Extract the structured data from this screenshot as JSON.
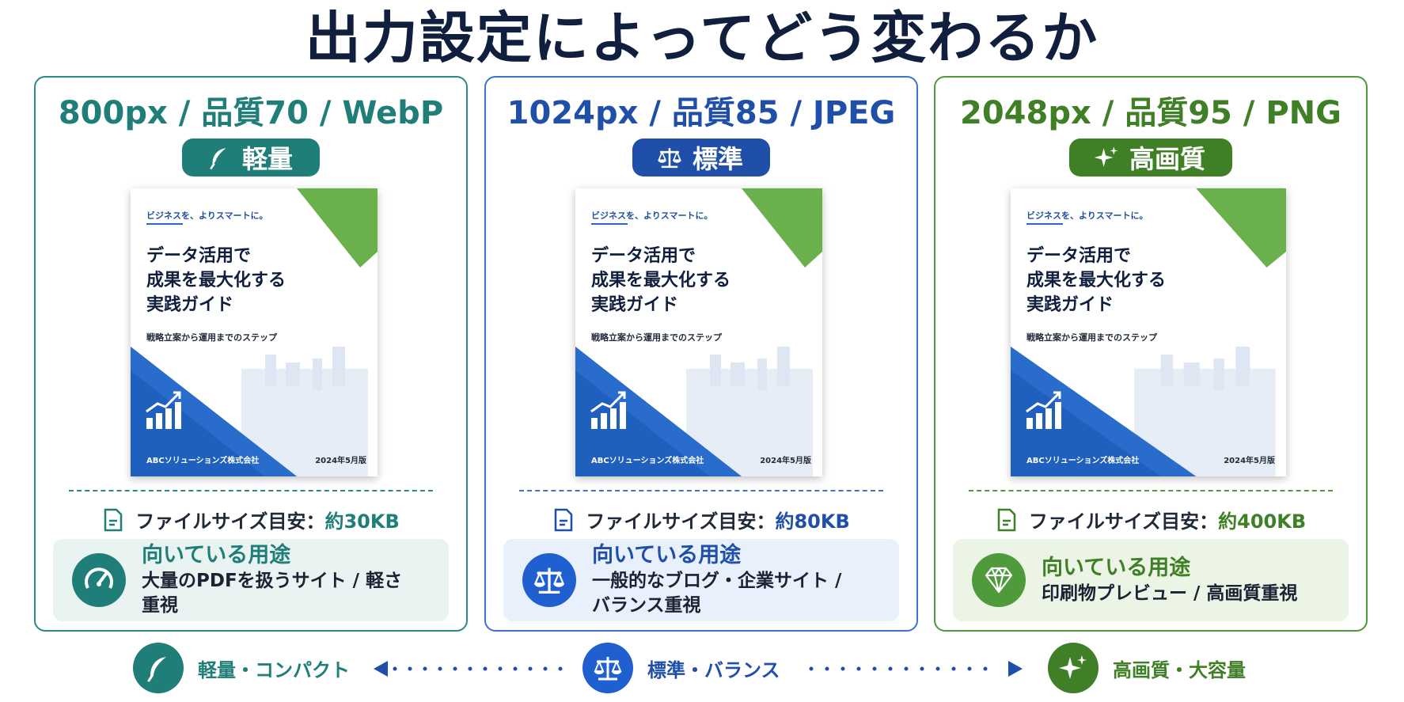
{
  "title": "出力設定によってどう変わるか",
  "colors": {
    "teal": "#1f7f78",
    "blue": "#1f4fa8",
    "green": "#3f7f26"
  },
  "cover": {
    "tagline": "ビジネスを、よりスマートに。",
    "title_lines": [
      "データ活用で",
      "成果を最大化する",
      "実践ガイド"
    ],
    "subtitle": "戦略立案から運用までのステップ",
    "company": "ABCソリューションズ株式会社",
    "edition": "2024年5月版"
  },
  "cards": [
    {
      "spec": "800px / 品質70 / WebP",
      "badge": "軽量",
      "badge_icon": "feather-icon",
      "size_label": "ファイルサイズ目安：",
      "size_value": "約30KB",
      "use_title": "向いている用途",
      "use_desc": "大量のPDFを扱うサイト / 軽さ重視",
      "use_icon": "speedometer-icon"
    },
    {
      "spec": "1024px / 品質85 / JPEG",
      "badge": "標準",
      "badge_icon": "scale-icon",
      "size_label": "ファイルサイズ目安：",
      "size_value": "約80KB",
      "use_title": "向いている用途",
      "use_desc": "一般的なブログ・企業サイト / バランス重視",
      "use_icon": "scale-icon"
    },
    {
      "spec": "2048px / 品質95 / PNG",
      "badge": "高画質",
      "badge_icon": "sparkle-icon",
      "size_label": "ファイルサイズ目安：",
      "size_value": "約400KB",
      "use_title": "向いている用途",
      "use_desc": "印刷物プレビュー / 高画質重視",
      "use_icon": "diamond-icon"
    }
  ],
  "scale": [
    {
      "label": "軽量・コンパクト",
      "icon": "feather-icon"
    },
    {
      "label": "標準・バランス",
      "icon": "scale-icon"
    },
    {
      "label": "高画質・大容量",
      "icon": "sparkle-icon"
    }
  ]
}
